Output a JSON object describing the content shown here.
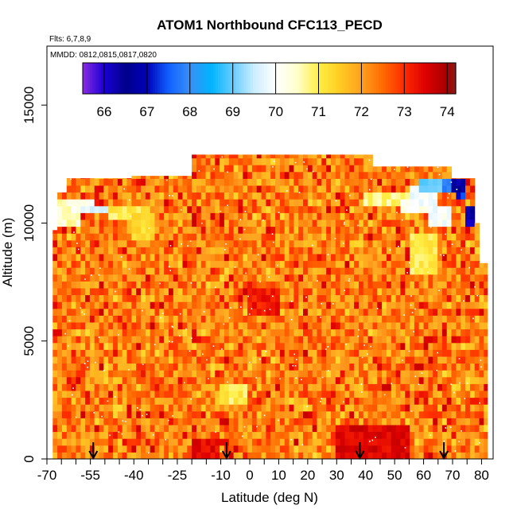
{
  "chart_data": {
    "type": "heatmap",
    "title": "ATOM1 Northbound CFC113_PECD",
    "subtitle_flights": "Flts: 6,7,8,9",
    "subtitle_dates": "MMDD: 0812,0815,0817,0820",
    "xlabel": "Latitude (deg N)",
    "ylabel": "Altitude (m)",
    "xlim": [
      -70,
      84
    ],
    "ylim": [
      0,
      17500
    ],
    "x_ticks": [
      -70,
      -55,
      -40,
      -25,
      -10,
      0,
      10,
      20,
      30,
      40,
      50,
      60,
      70,
      80
    ],
    "x_tick_labels": [
      "-70",
      "-55",
      "-40",
      "-25",
      "-10",
      "0",
      "10",
      "20",
      "30",
      "40",
      "50",
      "60",
      "70",
      "80"
    ],
    "x_minor_ticks": [
      -65,
      -60,
      -50,
      -45,
      -35,
      -30,
      -20,
      -15,
      -5,
      5,
      15,
      25,
      35,
      45,
      55,
      65,
      75
    ],
    "y_ticks": [
      0,
      5000,
      10000,
      15000
    ],
    "y_tick_labels": [
      "0",
      "5000",
      "10000",
      "15000"
    ],
    "colorbar": {
      "range": [
        65.5,
        74.2
      ],
      "ticks": [
        66,
        67,
        68,
        69,
        70,
        71,
        72,
        73,
        74
      ],
      "tick_labels": [
        "66",
        "67",
        "68",
        "69",
        "70",
        "71",
        "72",
        "73",
        "74"
      ],
      "stops": [
        [
          65.5,
          "#8a2be2"
        ],
        [
          66.0,
          "#1a00d4"
        ],
        [
          66.5,
          "#00008b"
        ],
        [
          67.0,
          "#0000b8"
        ],
        [
          67.5,
          "#1060ff"
        ],
        [
          68.0,
          "#3a8ff5"
        ],
        [
          68.5,
          "#00b4ff"
        ],
        [
          69.0,
          "#66ccff"
        ],
        [
          69.5,
          "#cceeff"
        ],
        [
          70.0,
          "#ffffff"
        ],
        [
          70.5,
          "#ffffcc"
        ],
        [
          71.0,
          "#ffee44"
        ],
        [
          71.5,
          "#ffcc22"
        ],
        [
          72.0,
          "#ffa020"
        ],
        [
          72.5,
          "#ff6a00"
        ],
        [
          73.0,
          "#ff2a00"
        ],
        [
          73.5,
          "#dd0000"
        ],
        [
          74.0,
          "#a50000"
        ],
        [
          74.2,
          "#8b1a1a"
        ]
      ]
    },
    "base_value": 72.3,
    "grid_top_by_lat": [
      [
        -68,
        9700
      ],
      [
        -66,
        11300
      ],
      [
        -63,
        11900
      ],
      [
        -40,
        12000
      ],
      [
        -20,
        12900
      ],
      [
        37,
        12900
      ],
      [
        42,
        12400
      ],
      [
        66,
        12400
      ],
      [
        70,
        11900
      ],
      [
        75,
        11900
      ],
      [
        77,
        10000
      ],
      [
        80,
        8300
      ],
      [
        82,
        0
      ]
    ],
    "anomalies": [
      {
        "lat": [
          -66,
          -58
        ],
        "alt": [
          10000,
          11000
        ],
        "value": 70.5
      },
      {
        "lat": [
          -62,
          -54
        ],
        "alt": [
          10500,
          11000
        ],
        "value": 70.0
      },
      {
        "lat": [
          -58,
          -48
        ],
        "alt": [
          10300,
          10700
        ],
        "value": 69.7
      },
      {
        "lat": [
          -48,
          -35
        ],
        "alt": [
          10200,
          10800
        ],
        "value": 71.0
      },
      {
        "lat": [
          -40,
          -33
        ],
        "alt": [
          9200,
          10300
        ],
        "value": 71.2
      },
      {
        "lat": [
          40,
          55
        ],
        "alt": [
          10600,
          11200
        ],
        "value": 70.8
      },
      {
        "lat": [
          52,
          62
        ],
        "alt": [
          10500,
          11000
        ],
        "value": 70.2
      },
      {
        "lat": [
          55,
          65
        ],
        "alt": [
          10800,
          11600
        ],
        "value": 69.8
      },
      {
        "lat": [
          58,
          66
        ],
        "alt": [
          11400,
          12000
        ],
        "value": 69.0
      },
      {
        "lat": [
          62,
          70
        ],
        "alt": [
          10000,
          10600
        ],
        "value": 70.0
      },
      {
        "lat": [
          66,
          72
        ],
        "alt": [
          11400,
          12000
        ],
        "value": 68.0
      },
      {
        "lat": [
          70,
          75
        ],
        "alt": [
          11400,
          12000
        ],
        "value": 66.5
      },
      {
        "lat": [
          72,
          75
        ],
        "alt": [
          10900,
          11400
        ],
        "value": 67.2
      },
      {
        "lat": [
          74,
          77
        ],
        "alt": [
          10000,
          10700
        ],
        "value": 66.2
      },
      {
        "lat": [
          55,
          65
        ],
        "alt": [
          7800,
          9500
        ],
        "value": 71.0
      },
      {
        "lat": [
          -10,
          0
        ],
        "alt": [
          2200,
          3200
        ],
        "value": 71.0
      },
      {
        "lat": [
          -20,
          -10
        ],
        "alt": [
          0,
          900
        ],
        "value": 73.4
      },
      {
        "lat": [
          30,
          55
        ],
        "alt": [
          0,
          1500
        ],
        "value": 73.5
      },
      {
        "lat": [
          0,
          10
        ],
        "alt": [
          6000,
          7200
        ],
        "value": 73.2
      }
    ],
    "arrow_markers_lat": [
      -54,
      -8,
      38,
      67
    ]
  }
}
